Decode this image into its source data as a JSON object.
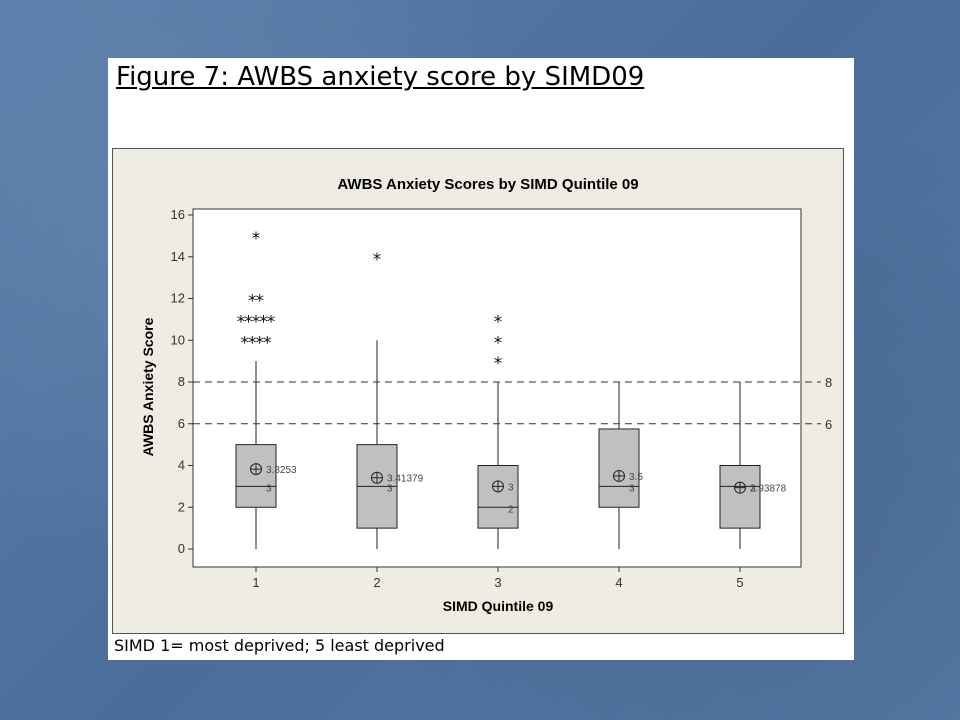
{
  "slide": {
    "figure_title": "Figure 7: AWBS anxiety score by SIMD09",
    "caption": "SIMD 1= most deprived; 5 least deprived"
  },
  "chart_data": {
    "type": "boxplot",
    "title": "AWBS Anxiety Scores by SIMD Quintile 09",
    "xlabel": "SIMD Quintile 09",
    "ylabel": "AWBS Anxiety Score",
    "ylim": [
      0,
      16
    ],
    "y_ticks": [
      0,
      2,
      4,
      6,
      8,
      10,
      12,
      14,
      16
    ],
    "grid": false,
    "reference_lines": [
      8,
      6
    ],
    "boxes": [
      {
        "category": "1",
        "min": 0,
        "q1": 2,
        "median": 3,
        "q3": 5,
        "max": 9,
        "mean": 3.8253,
        "mean_label": "3.8253",
        "median_label": "3",
        "outliers": [
          {
            "y": 15,
            "count": 1
          },
          {
            "y": 12,
            "count": 2
          },
          {
            "y": 11,
            "count": 5
          },
          {
            "y": 10,
            "count": 4
          }
        ]
      },
      {
        "category": "2",
        "min": 0,
        "q1": 1,
        "median": 3,
        "q3": 5,
        "max": 10,
        "mean": 3.41379,
        "mean_label": "3.41379",
        "median_label": "3",
        "outliers": [
          {
            "y": 14,
            "count": 1
          }
        ]
      },
      {
        "category": "3",
        "min": 0,
        "q1": 1,
        "median": 2,
        "q3": 4,
        "max": 8,
        "mean": 3,
        "mean_label": "3",
        "median_label": "2",
        "outliers": [
          {
            "y": 11,
            "count": 1
          },
          {
            "y": 10,
            "count": 1
          },
          {
            "y": 9,
            "count": 1
          }
        ]
      },
      {
        "category": "4",
        "min": 0,
        "q1": 2,
        "median": 3,
        "q3": 5.75,
        "max": 8,
        "mean": 3.5,
        "mean_label": "3.5",
        "median_label": "3",
        "outliers": []
      },
      {
        "category": "5",
        "min": 0,
        "q1": 1,
        "median": 3,
        "q3": 4,
        "max": 8,
        "mean": 2.93878,
        "mean_label": "2.93878",
        "median_label": "3",
        "outliers": []
      }
    ],
    "colors": {
      "box_fill": "#c0c0c0",
      "plot_background": "#ffffff",
      "frame_background": "#efece3"
    }
  }
}
